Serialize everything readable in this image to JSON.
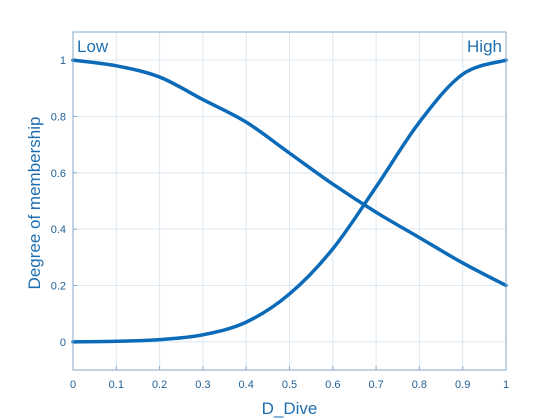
{
  "chart_data": {
    "type": "line",
    "title": "",
    "xlabel": "D_Dive",
    "ylabel": "Degree of membership",
    "xlim": [
      0,
      1
    ],
    "ylim": [
      -0.1,
      1.1
    ],
    "xticks": [
      0,
      0.1,
      0.2,
      0.3,
      0.4,
      0.5,
      0.6,
      0.7,
      0.8,
      0.9,
      1
    ],
    "yticks": [
      0,
      0.2,
      0.4,
      0.6,
      0.8,
      1
    ],
    "xtick_labels": [
      "0",
      "0.1",
      "0.2",
      "0.3",
      "0.4",
      "0.5",
      "0.6",
      "0.7",
      "0.8",
      "0.9",
      "1"
    ],
    "ytick_labels": [
      "0",
      "0.2",
      "0.4",
      "0.6",
      "0.8",
      "1"
    ],
    "grid": true,
    "colors": {
      "line": "#0b6bb8",
      "grid": "#dce8f2",
      "axis": "#86a9c8",
      "text": "#1f6fb0"
    },
    "series": [
      {
        "name": "Low",
        "x": [
          0,
          0.1,
          0.2,
          0.3,
          0.4,
          0.5,
          0.6,
          0.7,
          0.8,
          0.9,
          1
        ],
        "y": [
          1,
          0.98,
          0.94,
          0.86,
          0.78,
          0.67,
          0.56,
          0.46,
          0.37,
          0.28,
          0.2
        ]
      },
      {
        "name": "High",
        "x": [
          0,
          0.1,
          0.2,
          0.3,
          0.4,
          0.5,
          0.6,
          0.7,
          0.8,
          0.9,
          1
        ],
        "y": [
          0,
          0.002,
          0.008,
          0.025,
          0.07,
          0.17,
          0.33,
          0.55,
          0.78,
          0.95,
          1
        ]
      }
    ],
    "annotations": [
      {
        "text": "Low",
        "x": 0,
        "y": 1.05,
        "anchor": "start"
      },
      {
        "text": "High",
        "x": 1,
        "y": 1.05,
        "anchor": "end"
      }
    ]
  }
}
